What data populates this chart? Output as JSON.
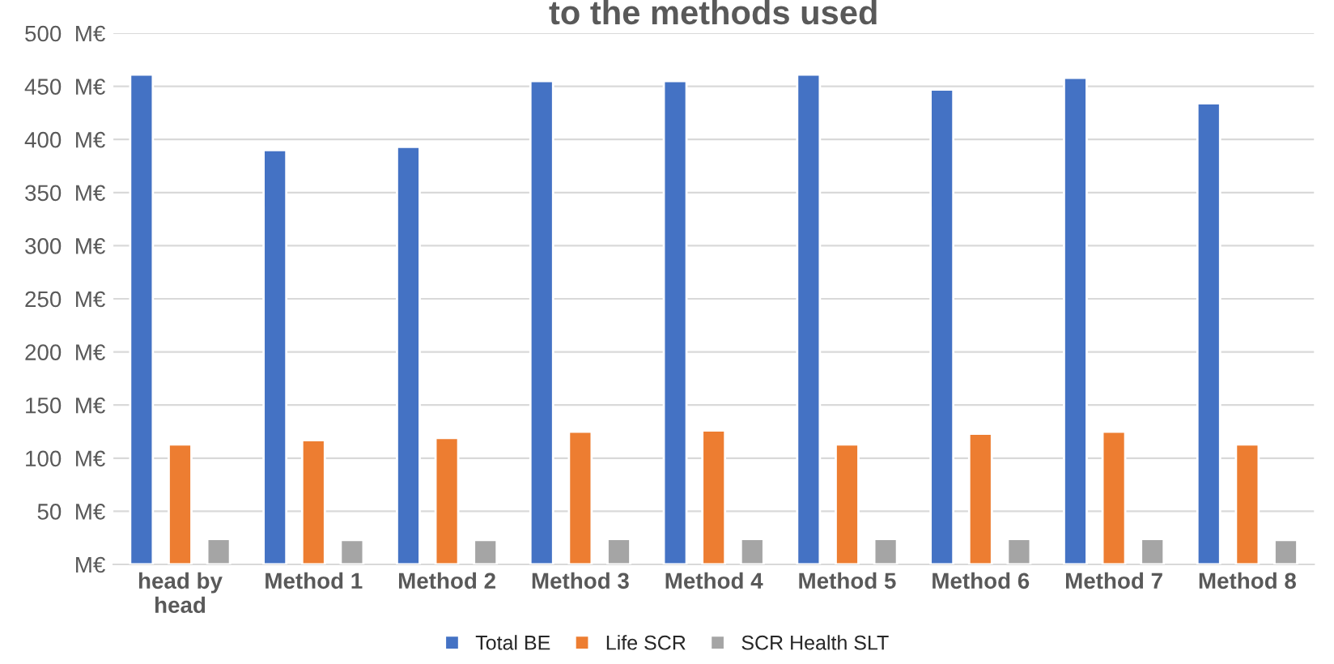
{
  "chart_data": {
    "type": "bar",
    "title": "to the methods used",
    "categories": [
      "head by\nhead",
      "Method 1",
      "Method 2",
      "Method 3",
      "Method 4",
      "Method 5",
      "Method 6",
      "Method 7",
      "Method 8"
    ],
    "series": [
      {
        "name": "Total BE",
        "color": "#4472c4",
        "values": [
          461,
          390,
          393,
          455,
          455,
          461,
          447,
          458,
          434
        ]
      },
      {
        "name": "Life SCR",
        "color": "#ed7d31",
        "values": [
          113,
          117,
          119,
          125,
          126,
          113,
          123,
          125,
          113
        ]
      },
      {
        "name": "SCR Health SLT",
        "color": "#a5a5a5",
        "values": [
          24,
          23,
          23,
          24,
          24,
          24,
          24,
          24,
          23
        ]
      }
    ],
    "ylim": [
      0,
      500
    ],
    "yticks": [
      {
        "value": 0,
        "label": "M€"
      },
      {
        "value": 50,
        "label": "50  M€"
      },
      {
        "value": 100,
        "label": "100  M€"
      },
      {
        "value": 150,
        "label": "150  M€"
      },
      {
        "value": 200,
        "label": "200  M€"
      },
      {
        "value": 250,
        "label": "250  M€"
      },
      {
        "value": 300,
        "label": "300  M€"
      },
      {
        "value": 350,
        "label": "350  M€"
      },
      {
        "value": 400,
        "label": "400  M€"
      },
      {
        "value": 450,
        "label": "450  M€"
      },
      {
        "value": 500,
        "label": "500  M€"
      }
    ],
    "grid": "y",
    "legend": "bottom"
  }
}
